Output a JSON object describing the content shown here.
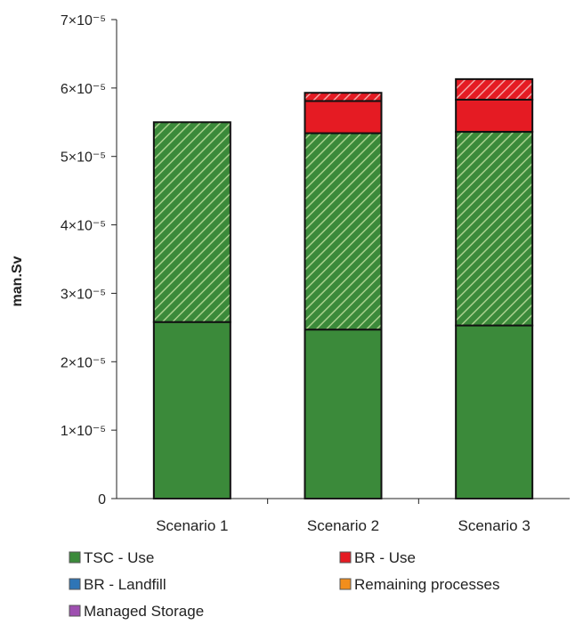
{
  "chart_data": {
    "type": "bar",
    "stacked": true,
    "title": "",
    "xlabel": "",
    "ylabel": "man.Sv",
    "ylim": [
      0,
      7e-05
    ],
    "y_ticks": [
      {
        "value": 0,
        "label": "0"
      },
      {
        "value": 1e-05,
        "label": "1×10⁻⁵"
      },
      {
        "value": 2e-05,
        "label": "2×10⁻⁵"
      },
      {
        "value": 3e-05,
        "label": "3×10⁻⁵"
      },
      {
        "value": 4e-05,
        "label": "4×10⁻⁵"
      },
      {
        "value": 5e-05,
        "label": "5×10⁻⁵"
      },
      {
        "value": 6e-05,
        "label": "6×10⁻⁵"
      },
      {
        "value": 7e-05,
        "label": "7×10⁻⁵"
      }
    ],
    "categories": [
      "Scenario 1",
      "Scenario 2",
      "Scenario 3"
    ],
    "segments_note": "each stacked bar shows solid and hatched portions per series",
    "series": [
      {
        "name": "TSC - Use",
        "color": "#3b8a3a",
        "solid": [
          2.58e-05,
          2.47e-05,
          2.53e-05
        ],
        "hatched": [
          2.92e-05,
          2.87e-05,
          2.83e-05
        ]
      },
      {
        "name": "BR - Use",
        "color": "#e51b23",
        "solid": [
          0.0,
          4.7e-06,
          4.7e-06
        ],
        "hatched": [
          0.0,
          1.2e-06,
          3e-06
        ]
      },
      {
        "name": "BR - Landfill",
        "color": "#2e75b6",
        "solid": [
          0,
          0,
          0
        ],
        "hatched": [
          0,
          0,
          0
        ]
      },
      {
        "name": "Remaining processes",
        "color": "#f28e1c",
        "solid": [
          0,
          0,
          0
        ],
        "hatched": [
          0,
          0,
          0
        ]
      },
      {
        "name": "Managed Storage",
        "color": "#9e4fb0",
        "solid": [
          0,
          0,
          0
        ],
        "hatched": [
          0,
          0,
          0
        ]
      }
    ],
    "legend_position": "bottom",
    "grid": false
  }
}
